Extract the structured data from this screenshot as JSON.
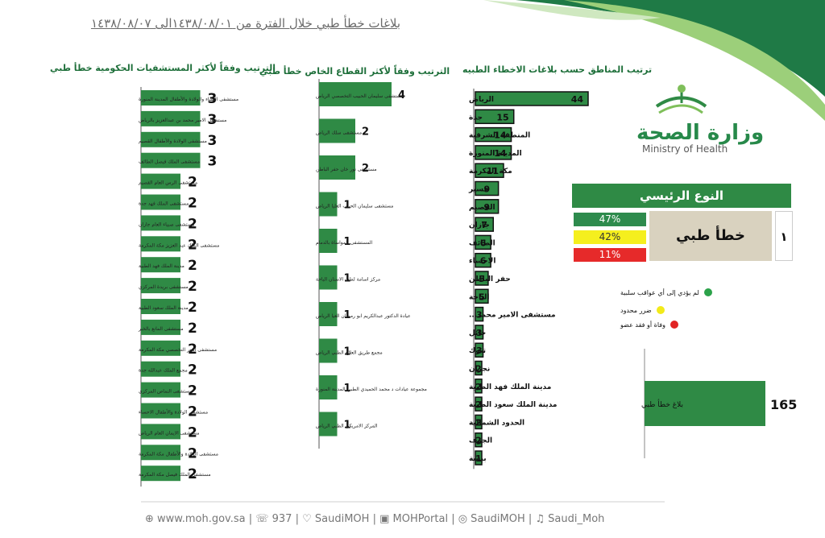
{
  "title": "بلاغات خطأ طبي خلال الفترة من ١٤٣٨/٠٨/٠١الى ١٤٣٨/٠٨/٠٧",
  "logo": {
    "arabic": "وزارة الصحة",
    "english": "Ministry of Health"
  },
  "colors": {
    "bar": "#2f8a45",
    "green": "#2e8b4d",
    "yellow": "#f5ef1e",
    "red": "#e62a2a",
    "beige": "#d9d2bf"
  },
  "main_type": {
    "header": "النوع الرئيسي",
    "label": "خطأ طبي",
    "number": "١",
    "percentages": [
      "47%",
      "42%",
      "11%"
    ]
  },
  "legend": [
    {
      "label": "لم يؤدي إلى أي عواقب سلبية",
      "color": "#2ca24a"
    },
    {
      "label": "ضرر محدود",
      "color": "#f2ea1a"
    },
    {
      "label": "وفاة أو فقد عضو",
      "color": "#e12424"
    }
  ],
  "footer": "⊕ www.moh.gov.sa | ☏ 937 | ♡ SaudiMOH | ▣ MOHPortal | ◎ SaudiMOH | ♫ Saudi_Moh",
  "chart_data": [
    {
      "type": "bar",
      "title": "ترتيب المناطق  حسب بلاغات الاخطاء الطبيه",
      "categories": [
        "الرياض",
        "جدة",
        "المنطقة الشرقية",
        "المدينة المنورة",
        "مكة المكرمة",
        "عسير",
        "القصيم",
        "جازان",
        "الطائف",
        "الاحساء",
        "حفر الباطن",
        "الباحة",
        "مستشفى الامير محمد...",
        "حائل",
        "تبوك",
        "نجران",
        "مدينة الملك فهد الطبية",
        "مدينة الملك سعود الطبية",
        "الحدود الشمالية",
        "الجوف",
        "بيشة"
      ],
      "values": [
        44,
        15,
        14,
        14,
        11,
        9,
        9,
        7,
        6,
        6,
        5,
        5,
        3,
        3,
        3,
        2,
        2,
        2,
        2,
        2,
        1
      ]
    },
    {
      "type": "bar",
      "title": "الترتيب وفقاً لأكثر القطاع الخاص خطأ طبي",
      "categories": [
        "مستشفى سليمان الحبيب التخصصي الرياض",
        "مستشفى سلك الرياض",
        "مستشفى نور خان حفر الباطن",
        "مستشفى سليمان الحبيب العليا الرياض",
        "المستشفى المواساة بالدمام",
        "مركز اسامة لطب الاسنان الباحة",
        "عيادة الدكتور عبدالكريم ابو رمضان العيا الرياض",
        "مجمع طريق العلاج الطبي الرياض",
        "مجموعة عيادات د محمد الحميدي الطبي المدينة المنورة",
        "المركز الامريكي الطبي الرياض"
      ],
      "values": [
        4,
        2,
        2,
        1,
        1,
        1,
        1,
        1,
        1,
        1
      ]
    },
    {
      "type": "bar",
      "title": "الترتيب وفقاً لأكثر المستشفيات الحكومية خطأ طبي",
      "categories": [
        "مستشفى النساء والولادة والأطفال المدينة المنورة",
        "مستشفى الامير محمد بن عبدالعزيز بالرياض",
        "مستشفى الولادة والأطفال القصيم",
        "مستشفى الملك فيصل الطائف",
        "مستشفى الرس العام القصيم",
        "مستشفى الملك فهد جدة",
        "مستشفى صبياء العام جازان",
        "مستشفى الملك عبد العزيز مكة المكرمة",
        "مدينة الملك فهد الطبية",
        "مستشفى بريدة المركزي",
        "مدينة الملك سعود الطبية",
        "مستشفى المانع بالخبر",
        "مستشفى النور التخصصي مكة المكرمة",
        "مجمع الملك عبدالله جدة",
        "مستشفى النماص المركزي",
        "مستشفى الولادة والأطفال الاحساء",
        "مستشفى الايمان العام الرياض",
        "مستشفى الولادة والأطفال مكة المكرمة",
        "مستشفى الملك فيصل مكة المكرمة"
      ],
      "values": [
        3,
        3,
        3,
        3,
        2,
        2,
        2,
        2,
        2,
        2,
        2,
        2,
        2,
        2,
        2,
        2,
        2,
        2,
        2
      ]
    },
    {
      "type": "bar",
      "categories": [
        "بلاغ خطأ طبي"
      ],
      "values": [
        165
      ]
    }
  ]
}
